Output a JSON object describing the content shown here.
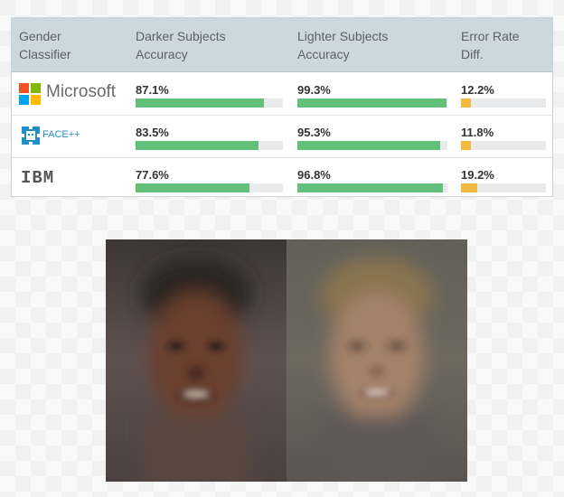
{
  "table": {
    "headers": [
      "Gender\nClassifier",
      "Darker Subjects\nAccuracy",
      "Lighter Subjects\nAccuracy",
      "Error Rate\nDiff."
    ],
    "rows": [
      {
        "classifier": "Microsoft",
        "logo_icon": "microsoft-logo-icon",
        "darker": "87.1%",
        "lighter": "99.3%",
        "diff": "12.2%"
      },
      {
        "classifier": "FACE++",
        "logo_icon": "face-plus-plus-logo-icon",
        "darker": "83.5%",
        "lighter": "95.3%",
        "diff": "11.8%"
      },
      {
        "classifier": "IBM",
        "logo_icon": "ibm-logo-icon",
        "darker": "77.6%",
        "lighter": "96.8%",
        "diff": "19.2%"
      }
    ]
  },
  "chart_data": {
    "type": "table",
    "columns": [
      "Gender Classifier",
      "Darker Subjects Accuracy",
      "Lighter Subjects Accuracy",
      "Error Rate Diff."
    ],
    "categories": [
      "Microsoft",
      "FACE++",
      "IBM"
    ],
    "series": [
      {
        "name": "Darker Subjects Accuracy",
        "values": [
          87.1,
          83.5,
          77.6
        ]
      },
      {
        "name": "Lighter Subjects Accuracy",
        "values": [
          99.3,
          95.3,
          96.8
        ]
      },
      {
        "name": "Error Rate Diff.",
        "values": [
          12.2,
          11.8,
          19.2
        ]
      }
    ],
    "bar_scale_max": 100,
    "colors": {
      "accuracy": "#62c07a",
      "error": "#f4b942",
      "track": "#e8eaec"
    }
  },
  "images": {
    "left_face": "average-face-darker-subjects",
    "right_face": "average-face-lighter-subjects"
  }
}
